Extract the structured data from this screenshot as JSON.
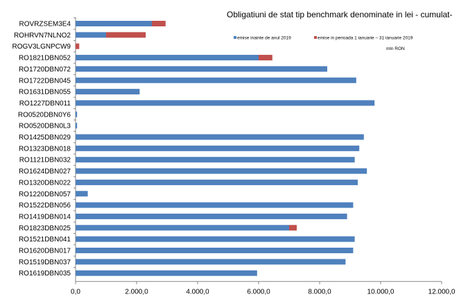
{
  "chart_data": {
    "type": "bar",
    "orientation": "horizontal",
    "stacked": true,
    "title": "Obligatiuni de stat tip benchmark denominate in lei - cumulat-",
    "unit_label": "mln RON",
    "legend_position": "top-right",
    "grid": false,
    "xlim": [
      0,
      12000
    ],
    "x_ticks": [
      "0,0",
      "2.000,0",
      "4.000,0",
      "6.000,0",
      "8.000,0",
      "10.000,0",
      "12.000,0"
    ],
    "x_tick_values": [
      0,
      2000,
      4000,
      6000,
      8000,
      10000,
      12000
    ],
    "categories": [
      "ROVRZSEM3E4",
      "ROHRVN7NLNO2",
      "ROGV3LGNPCW9",
      "RO1821DBN052",
      "RO1720DBN072",
      "RO1722DBN045",
      "RO1631DBN055",
      "RO1227DBN011",
      "RO0520DBN0Y6",
      "RO0520DBN0L3",
      "RO1425DBN029",
      "RO1323DBN018",
      "RO1121DBN032",
      "RO1624DBN027",
      "RO1320DBN022",
      "RO1220DBN057",
      "RO1522DBN056",
      "RO1419DBN014",
      "RO1823DBN025",
      "RO1521DBN041",
      "RO1620DBN017",
      "RO1519DBN037",
      "RO1619DBN035"
    ],
    "series": [
      {
        "name": "emise inainte de anul 2019",
        "color": "#4f81bd",
        "values": [
          2500,
          1000,
          0,
          6000,
          8250,
          9200,
          2100,
          9800,
          50,
          50,
          9450,
          9300,
          9150,
          9550,
          9250,
          400,
          9100,
          8900,
          7000,
          9150,
          9100,
          8850,
          5950
        ]
      },
      {
        "name": "emise in perioada 1 ianuarie – 31 ianuarie 2019",
        "color": "#c0504d",
        "values": [
          450,
          1300,
          120,
          450,
          0,
          0,
          0,
          0,
          0,
          0,
          0,
          0,
          0,
          0,
          0,
          0,
          0,
          0,
          250,
          0,
          0,
          0,
          0
        ]
      }
    ]
  }
}
